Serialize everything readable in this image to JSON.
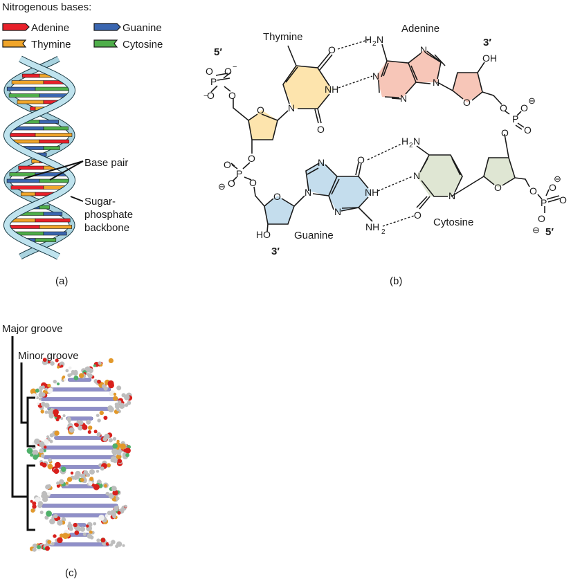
{
  "legend": {
    "title": "Nitrogenous bases:",
    "items": [
      {
        "name": "Adenine",
        "color": "#e8202a"
      },
      {
        "name": "Guanine",
        "color": "#3a66b0"
      },
      {
        "name": "Thymine",
        "color": "#f0a52a"
      },
      {
        "name": "Cytosine",
        "color": "#4fae4a"
      }
    ]
  },
  "panel_a": {
    "caption": "(a)",
    "base_pair_label": "Base pair",
    "backbone_label_1": "Sugar-",
    "backbone_label_2": "phosphate",
    "backbone_label_3": "backbone",
    "backbone_color": "#bfe3ee"
  },
  "panel_b": {
    "caption": "(b)",
    "thymine": "Thymine",
    "adenine": "Adenine",
    "guanine": "Guanine",
    "cytosine": "Cytosine",
    "five_prime_top": "5′",
    "three_prime_top": "3′",
    "three_prime_bottom": "3′",
    "five_prime_bottom": "5′",
    "colors": {
      "thymine": "#fde4ad",
      "adenine": "#f7c6b8",
      "guanine": "#c4dded",
      "cytosine": "#dfe6d3"
    }
  },
  "panel_c": {
    "caption": "(c)",
    "major_groove": "Major groove",
    "minor_groove": "Minor groove"
  }
}
